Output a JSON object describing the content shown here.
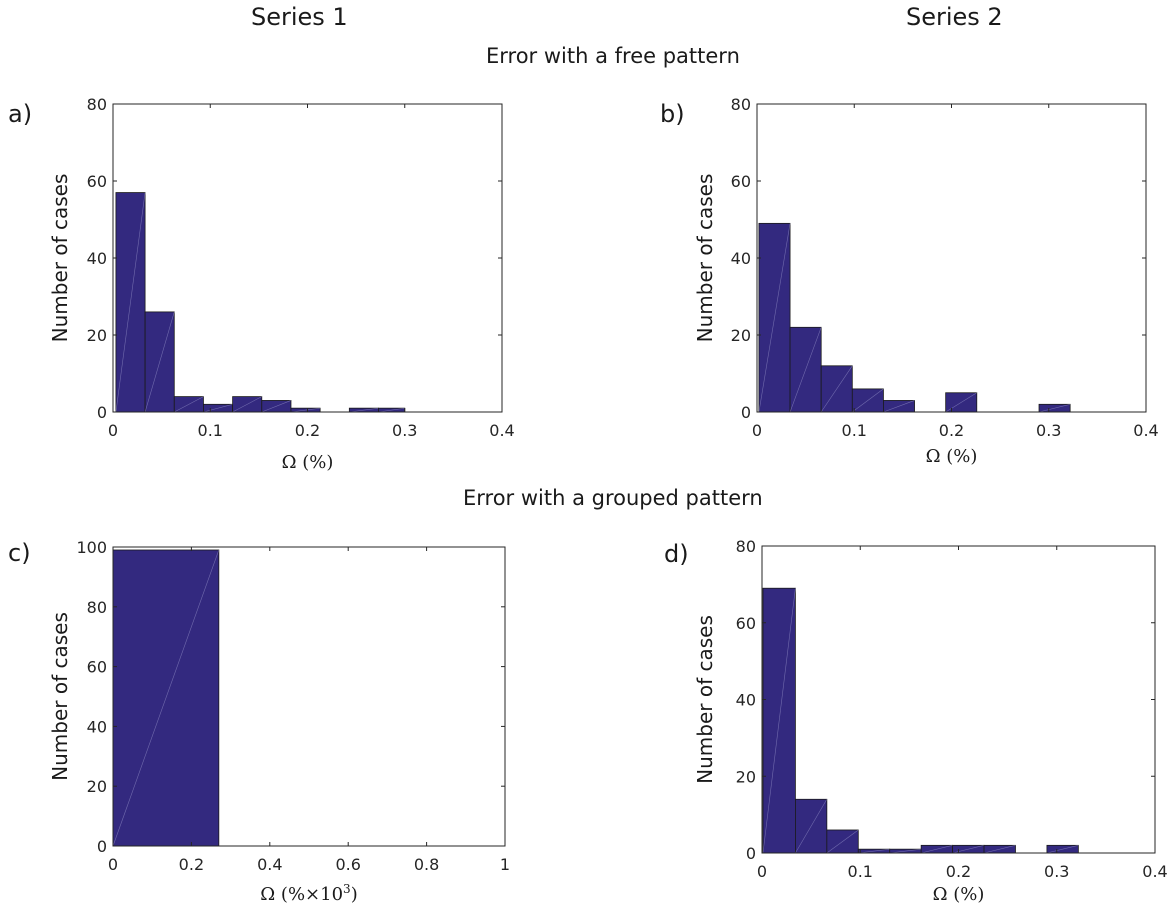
{
  "headers": {
    "series1": "Series 1",
    "series2": "Series 2",
    "row1": "Error with a free pattern",
    "row2": "Error with a grouped pattern"
  },
  "colors": {
    "bar": "#33297f",
    "edge": "#1a1a1a"
  },
  "chart_data": [
    {
      "id": "a",
      "type": "bar",
      "panel_label": "a)",
      "xlabel": "Ω (%)",
      "ylabel": "Number of cases",
      "xlim": [
        0,
        0.4
      ],
      "ylim": [
        0,
        80
      ],
      "xticks": [
        0,
        0.1,
        0.2,
        0.3,
        0.4
      ],
      "yticks": [
        0,
        20,
        40,
        60,
        80
      ],
      "xtick_labels": [
        "0",
        "0.1",
        "0.2",
        "0.3",
        "0.4"
      ],
      "ytick_labels": [
        "0",
        "20",
        "40",
        "60",
        "80"
      ],
      "bin_edges": [
        0.003,
        0.033,
        0.063,
        0.093,
        0.123,
        0.153,
        0.183,
        0.213,
        0.243,
        0.273,
        0.3
      ],
      "values": [
        57,
        26,
        4,
        2,
        4,
        3,
        1,
        0,
        1,
        1
      ]
    },
    {
      "id": "b",
      "type": "bar",
      "panel_label": "b)",
      "xlabel": "Ω (%)",
      "ylabel": "Number of cases",
      "xlim": [
        0,
        0.4
      ],
      "ylim": [
        0,
        80
      ],
      "xticks": [
        0,
        0.1,
        0.2,
        0.3,
        0.4
      ],
      "yticks": [
        0,
        20,
        40,
        60,
        80
      ],
      "xtick_labels": [
        "0",
        "0.1",
        "0.2",
        "0.3",
        "0.4"
      ],
      "ytick_labels": [
        "0",
        "20",
        "40",
        "60",
        "80"
      ],
      "bin_edges": [
        0.002,
        0.034,
        0.066,
        0.098,
        0.13,
        0.162,
        0.194,
        0.226,
        0.258,
        0.29,
        0.322
      ],
      "values": [
        49,
        22,
        12,
        6,
        3,
        0,
        5,
        0,
        0,
        2
      ]
    },
    {
      "id": "c",
      "type": "bar",
      "panel_label": "c)",
      "xlabel": "Ω (%×10",
      "xlabel_sup": "3",
      "xlabel_tail": ")",
      "ylabel": "Number of cases",
      "xlim": [
        0,
        1
      ],
      "ylim": [
        0,
        100
      ],
      "xticks": [
        0,
        0.2,
        0.4,
        0.6,
        0.8,
        1
      ],
      "yticks": [
        0,
        20,
        40,
        60,
        80,
        100
      ],
      "xtick_labels": [
        "0",
        "0.2",
        "0.4",
        "0.6",
        "0.8",
        "1"
      ],
      "ytick_labels": [
        "0",
        "20",
        "40",
        "60",
        "80",
        "100"
      ],
      "bin_edges": [
        0,
        0.27
      ],
      "values": [
        99
      ]
    },
    {
      "id": "d",
      "type": "bar",
      "panel_label": "d)",
      "xlabel": "Ω (%)",
      "ylabel": "Number of cases",
      "xlim": [
        0,
        0.4
      ],
      "ylim": [
        0,
        80
      ],
      "xticks": [
        0,
        0.1,
        0.2,
        0.3,
        0.4
      ],
      "yticks": [
        0,
        20,
        40,
        60,
        80
      ],
      "xtick_labels": [
        "0",
        "0.1",
        "0.2",
        "0.3",
        "0.4"
      ],
      "ytick_labels": [
        "0",
        "20",
        "40",
        "60",
        "80"
      ],
      "bin_edges": [
        0.001,
        0.034,
        0.066,
        0.098,
        0.13,
        0.162,
        0.194,
        0.226,
        0.258,
        0.29,
        0.322
      ],
      "values": [
        69,
        14,
        6,
        1,
        1,
        2,
        2,
        2,
        0,
        2
      ]
    }
  ]
}
